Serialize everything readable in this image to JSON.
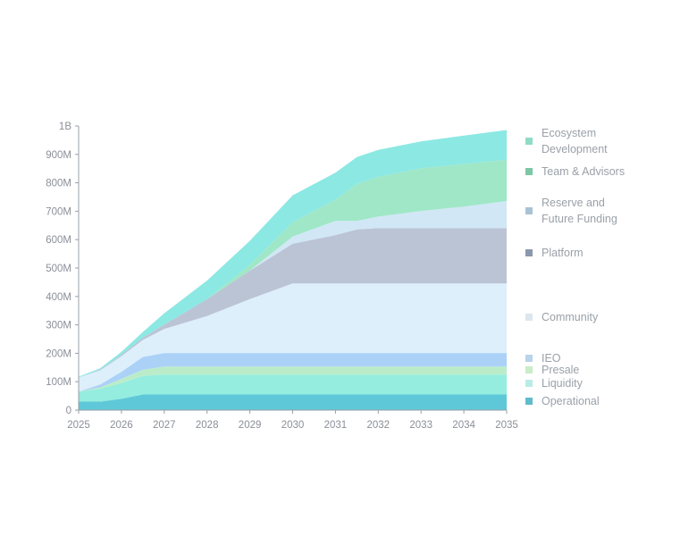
{
  "chart_data": {
    "type": "area",
    "stacked": true,
    "x": [
      2025,
      2025.5,
      2026,
      2026.5,
      2027,
      2028,
      2029,
      2030,
      2031,
      2031.5,
      2032,
      2033,
      2034,
      2035
    ],
    "xticks": [
      "2025",
      "2026",
      "2027",
      "2028",
      "2029",
      "2030",
      "2031",
      "2032",
      "2033",
      "2034",
      "2035"
    ],
    "yticks": [
      {
        "v": 0,
        "label": "0"
      },
      {
        "v": 100000000,
        "label": "100M"
      },
      {
        "v": 200000000,
        "label": "200M"
      },
      {
        "v": 300000000,
        "label": "300M"
      },
      {
        "v": 400000000,
        "label": "400M"
      },
      {
        "v": 500000000,
        "label": "500M"
      },
      {
        "v": 600000000,
        "label": "600M"
      },
      {
        "v": 700000000,
        "label": "700M"
      },
      {
        "v": 800000000,
        "label": "800M"
      },
      {
        "v": 900000000,
        "label": "900M"
      },
      {
        "v": 1000000000,
        "label": "1B"
      }
    ],
    "xlim": [
      2025,
      2035
    ],
    "ylim": [
      0,
      1000000000
    ],
    "grid": false,
    "legend_position": "right",
    "series": [
      {
        "name": "Operational",
        "color": "#56c5d6",
        "values": [
          30,
          30,
          40,
          55,
          55,
          55,
          55,
          55,
          55,
          55,
          55,
          55,
          55,
          55
        ]
      },
      {
        "name": "Liquidity",
        "color": "#8eecdc",
        "values": [
          35,
          45,
          55,
          65,
          70,
          70,
          70,
          70,
          70,
          70,
          70,
          70,
          70,
          70
        ]
      },
      {
        "name": "Presale",
        "color": "#b7ebc7",
        "values": [
          0,
          5,
          15,
          22,
          28,
          28,
          28,
          28,
          28,
          28,
          28,
          28,
          28,
          28
        ]
      },
      {
        "name": "IEO",
        "color": "#a7cff7",
        "values": [
          0,
          10,
          25,
          45,
          48,
          48,
          48,
          48,
          48,
          48,
          48,
          48,
          48,
          48
        ]
      },
      {
        "name": "Community",
        "color": "#dbeefb",
        "values": [
          50,
          50,
          55,
          60,
          85,
          130,
          190,
          245,
          245,
          245,
          245,
          245,
          245,
          245
        ]
      },
      {
        "name": "Platform",
        "color": "#b7c1d3",
        "values": [
          0,
          2,
          5,
          8,
          15,
          60,
          100,
          140,
          170,
          190,
          195,
          195,
          195,
          195
        ]
      },
      {
        "name": "Reserve and Future Funding",
        "color": "#cfe6f6",
        "values": [
          0,
          0,
          0,
          0,
          0,
          0,
          0,
          25,
          50,
          30,
          40,
          60,
          75,
          95
        ]
      },
      {
        "name": "Team & Advisors",
        "color": "#9be6c4",
        "values": [
          0,
          0,
          0,
          0,
          0,
          0,
          20,
          50,
          75,
          130,
          140,
          150,
          150,
          145
        ]
      },
      {
        "name": "Ecosystem Development",
        "color": "#86e7e2",
        "values": [
          3,
          5,
          10,
          20,
          40,
          65,
          85,
          95,
          95,
          95,
          95,
          95,
          100,
          105
        ]
      }
    ],
    "units": "millions"
  },
  "legend": [
    {
      "key": "ecosystem",
      "lines": [
        "Ecosystem",
        "Development"
      ],
      "color": "#8fdcc6"
    },
    {
      "key": "team",
      "lines": [
        "Team & Advisors"
      ],
      "color": "#7cc7a4"
    },
    {
      "key": "reserve",
      "lines": [
        "Reserve and",
        "Future Funding"
      ],
      "color": "#a9c2d4"
    },
    {
      "key": "platform",
      "lines": [
        "Platform"
      ],
      "color": "#8b97ac"
    },
    {
      "key": "community",
      "lines": [
        "Community"
      ],
      "color": "#dbe7ef"
    },
    {
      "key": "ieo",
      "lines": [
        "IEO"
      ],
      "color": "#b8d3ea"
    },
    {
      "key": "presale",
      "lines": [
        "Presale"
      ],
      "color": "#c9ecc9"
    },
    {
      "key": "liquidity",
      "lines": [
        "Liquidity"
      ],
      "color": "#b9ece5"
    },
    {
      "key": "operational",
      "lines": [
        "Operational"
      ],
      "color": "#5fbccb"
    }
  ]
}
